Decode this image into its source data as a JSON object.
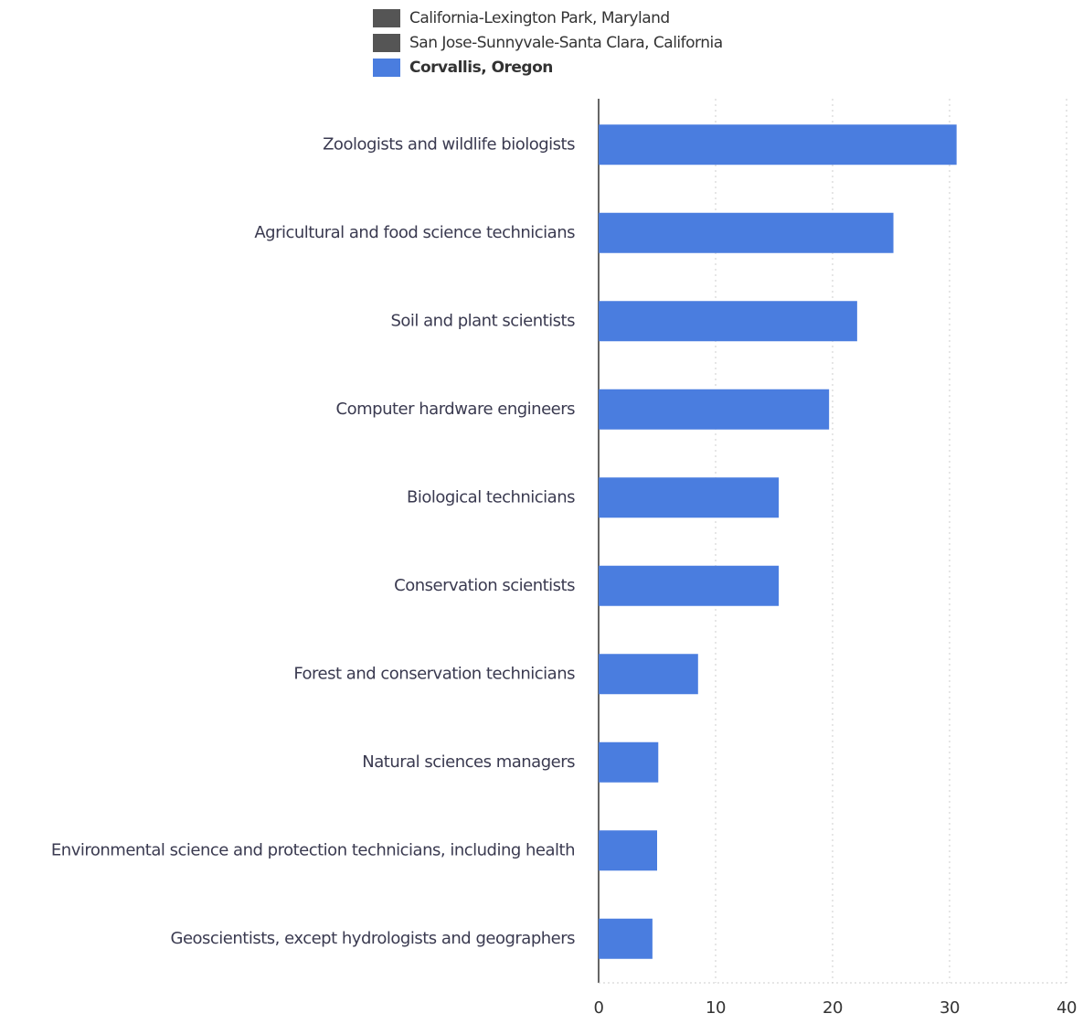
{
  "chart_data": {
    "type": "barh",
    "categories": [
      "Zoologists and wildlife biologists",
      "Agricultural and food science technicians",
      "Soil and plant scientists",
      "Computer hardware engineers",
      "Biological technicians",
      "Conservation scientists",
      "Forest and conservation technicians",
      "Natural sciences managers",
      "Environmental science and protection technicians, including health",
      "Geoscientists, except hydrologists and geographers"
    ],
    "series": [
      {
        "name": "California-Lexington Park, Maryland",
        "color": "#555555",
        "values": [
          null,
          null,
          null,
          null,
          null,
          null,
          null,
          null,
          null,
          null
        ]
      },
      {
        "name": "San Jose-Sunnyvale-Santa Clara, California",
        "color": "#555555",
        "values": [
          null,
          null,
          null,
          null,
          null,
          null,
          null,
          null,
          null,
          null
        ]
      },
      {
        "name": "Corvallis, Oregon",
        "color": "#4a7ddf",
        "values": [
          30.6,
          25.2,
          22.1,
          19.7,
          15.4,
          15.4,
          8.5,
          5.1,
          5.0,
          4.6
        ]
      }
    ],
    "xlim": [
      0,
      40
    ],
    "xticks": [
      0,
      10,
      20,
      30,
      40
    ],
    "grid": true
  }
}
